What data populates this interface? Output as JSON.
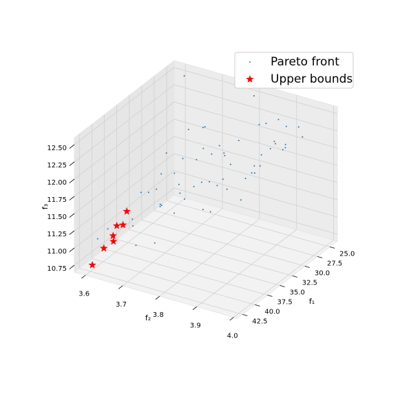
{
  "chart_data": {
    "type": "scatter3d",
    "xlabel": "f₁",
    "ylabel": "f₂",
    "zlabel": "f₃",
    "xlim": [
      23.5,
      43.5
    ],
    "ylim": [
      3.57,
      4.01
    ],
    "zlim": [
      10.65,
      12.6
    ],
    "xticks": [
      {
        "value": 25,
        "label": "25.0"
      },
      27.5,
      {
        "value": 30,
        "label": "30.0"
      },
      32.5,
      {
        "value": 35,
        "label": "35.0"
      },
      37.5,
      {
        "value": 40,
        "label": "40.0"
      },
      42.5
    ],
    "yticks": [
      3.6,
      3.7,
      3.8,
      3.9,
      {
        "value": 4,
        "label": "4.0"
      }
    ],
    "zticks": [
      10.75,
      {
        "value": 11,
        "label": "11.00"
      },
      11.25,
      {
        "value": 11.5,
        "label": "11.50"
      },
      11.75,
      {
        "value": 12,
        "label": "12.00"
      },
      12.25,
      {
        "value": 12.5,
        "label": "12.50"
      }
    ],
    "grid": true,
    "legend": "upper right",
    "series": [
      {
        "name": "Pareto front",
        "color": "#1f77b4",
        "marker": "dot",
        "x": [
          25.2,
          26.8,
          28.1,
          29.5,
          31.0,
          32.4,
          33.9,
          35.3,
          36.8,
          38.2,
          39.7,
          41.1,
          42.0,
          24.6,
          27.3,
          30.2,
          33.1,
          36.0,
          38.9,
          41.8,
          25.9,
          28.8,
          31.7,
          34.6,
          37.5,
          40.4,
          26.3,
          29.2,
          32.1,
          35.0,
          37.9,
          40.8,
          24.9,
          27.8,
          30.7,
          33.6,
          36.5,
          39.4,
          42.3,
          25.5,
          28.4,
          31.3,
          34.2,
          37.1,
          40.0,
          26.0,
          29.0,
          32.0,
          35.5,
          38.5,
          41.5,
          27.0,
          30.0,
          33.0,
          36.2,
          39.1,
          24.8,
          28.0,
          34.8,
          40.6
        ],
        "y": [
          3.62,
          3.95,
          3.71,
          3.88,
          3.65,
          3.99,
          3.77,
          3.83,
          3.68,
          3.92,
          3.74,
          3.86,
          3.64,
          3.8,
          3.66,
          3.93,
          3.7,
          3.97,
          3.79,
          3.61,
          3.85,
          3.72,
          3.98,
          3.63,
          3.89,
          3.76,
          3.91,
          3.67,
          3.82,
          3.96,
          3.73,
          3.69,
          3.87,
          3.75,
          3.94,
          3.78,
          3.84,
          3.9,
          3.72,
          3.68,
          3.81,
          3.64,
          3.93,
          3.97,
          3.87,
          3.74,
          3.99,
          3.7,
          3.62,
          3.8,
          3.76,
          3.91,
          3.85,
          3.66,
          3.95,
          3.78,
          3.73,
          3.89,
          3.82,
          3.98
        ],
        "z": [
          12.55,
          12.4,
          12.1,
          12.48,
          11.8,
          12.52,
          12.05,
          12.3,
          11.6,
          12.45,
          11.9,
          12.2,
          11.3,
          12.5,
          11.95,
          12.35,
          11.7,
          12.38,
          12.0,
          11.1,
          12.25,
          11.85,
          12.42,
          11.4,
          12.15,
          11.75,
          12.32,
          11.65,
          12.12,
          12.47,
          11.55,
          11.45,
          12.28,
          11.88,
          12.36,
          11.72,
          11.98,
          12.18,
          11.2,
          11.92,
          12.08,
          11.5,
          12.22,
          12.34,
          11.82,
          11.62,
          12.44,
          11.35,
          10.95,
          11.78,
          11.25,
          12.02,
          11.68,
          11.15,
          12.26,
          11.58,
          11.05,
          12.06,
          11.42,
          12.16
        ]
      },
      {
        "name": "Upper bounds",
        "color": "#ff0000",
        "marker": "star",
        "x": [
          42.5,
          42.5,
          42.5,
          42.5,
          42.5,
          42.0,
          42.5
        ],
        "y": [
          3.605,
          3.636,
          3.662,
          3.661,
          3.671,
          3.681,
          3.698
        ],
        "z": [
          10.75,
          11.04,
          11.18,
          11.26,
          11.42,
          11.42,
          11.67
        ]
      }
    ]
  }
}
